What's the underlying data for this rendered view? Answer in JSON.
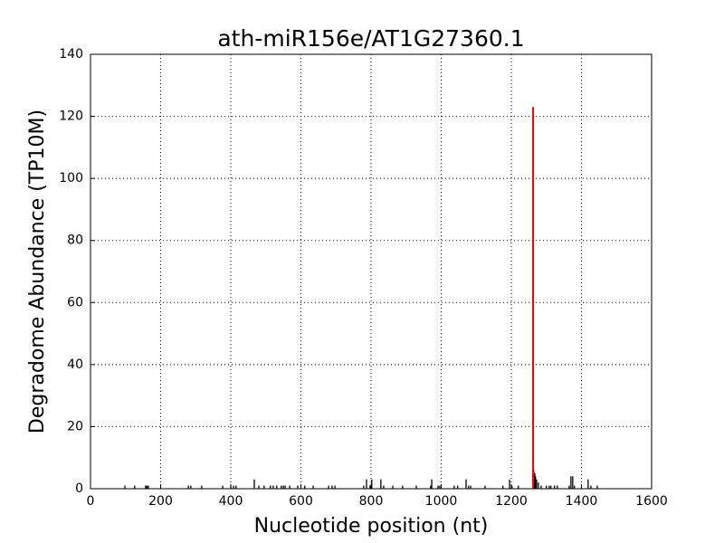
{
  "chart_data": {
    "type": "stem",
    "title": "ath-miR156e/AT1G27360.1",
    "xlabel": "Nucleotide position (nt)",
    "ylabel": "Degradome Abundance (TP10M)",
    "xlim": [
      0,
      1600
    ],
    "xticks": [
      0,
      200,
      400,
      600,
      800,
      1000,
      1200,
      1400,
      1600
    ],
    "ylim": [
      0,
      140
    ],
    "yticks": [
      0,
      20,
      40,
      60,
      80,
      100,
      120,
      140
    ],
    "grid": true,
    "series": [
      {
        "color": "#000000",
        "x": [
          98,
          126,
          157,
          161,
          165,
          279,
          286,
          317,
          377,
          400,
          408,
          415,
          467,
          480,
          495,
          513,
          521,
          531,
          544,
          550,
          555,
          568,
          591,
          611,
          635,
          679,
          689,
          697,
          779,
          787,
          797,
          802,
          828,
          836,
          862,
          890,
          929,
          970,
          973,
          991,
          996,
          1037,
          1047,
          1071,
          1078,
          1084,
          1125,
          1176,
          1195,
          1202,
          1220,
          1264,
          1267,
          1269,
          1272,
          1277,
          1285,
          1300,
          1308,
          1313,
          1323,
          1331,
          1365,
          1370,
          1375,
          1380,
          1419,
          1427,
          1445
        ],
        "values": [
          1,
          1,
          1,
          1,
          1,
          1,
          1,
          1,
          1,
          1,
          1,
          1,
          3,
          1,
          1,
          1,
          1,
          1,
          1,
          1,
          1,
          1,
          1,
          1,
          1,
          1,
          1,
          1,
          1,
          3,
          1,
          3,
          3,
          1,
          1,
          1,
          1,
          1,
          3,
          1,
          1,
          1,
          1,
          3,
          1,
          1,
          1,
          1,
          3,
          1,
          1,
          6,
          5,
          4,
          3,
          2,
          1,
          1,
          1,
          1,
          1,
          1,
          1,
          4,
          4,
          1,
          3,
          1,
          1
        ]
      },
      {
        "color": "#ff0000",
        "x": [
          1262
        ],
        "values": [
          123
        ]
      }
    ]
  }
}
